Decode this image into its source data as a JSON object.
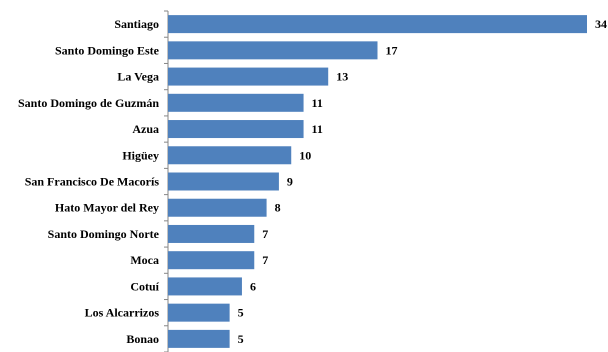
{
  "chart_data": {
    "type": "bar",
    "orientation": "horizontal",
    "categories": [
      "Santiago",
      "Santo Domingo Este",
      "La Vega",
      "Santo Domingo de Guzmán",
      "Azua",
      "Higüey",
      "San Francisco De Macorís",
      "Hato Mayor del Rey",
      "Santo Domingo Norte",
      "Moca",
      "Cotuí",
      "Los Alcarrizos",
      "Bonao"
    ],
    "values": [
      34,
      17,
      13,
      11,
      11,
      10,
      9,
      8,
      7,
      7,
      6,
      5,
      5
    ],
    "xlim": [
      0,
      34
    ],
    "grid": false,
    "bar_color": "#4F81BD",
    "axis_color": "#868686"
  }
}
